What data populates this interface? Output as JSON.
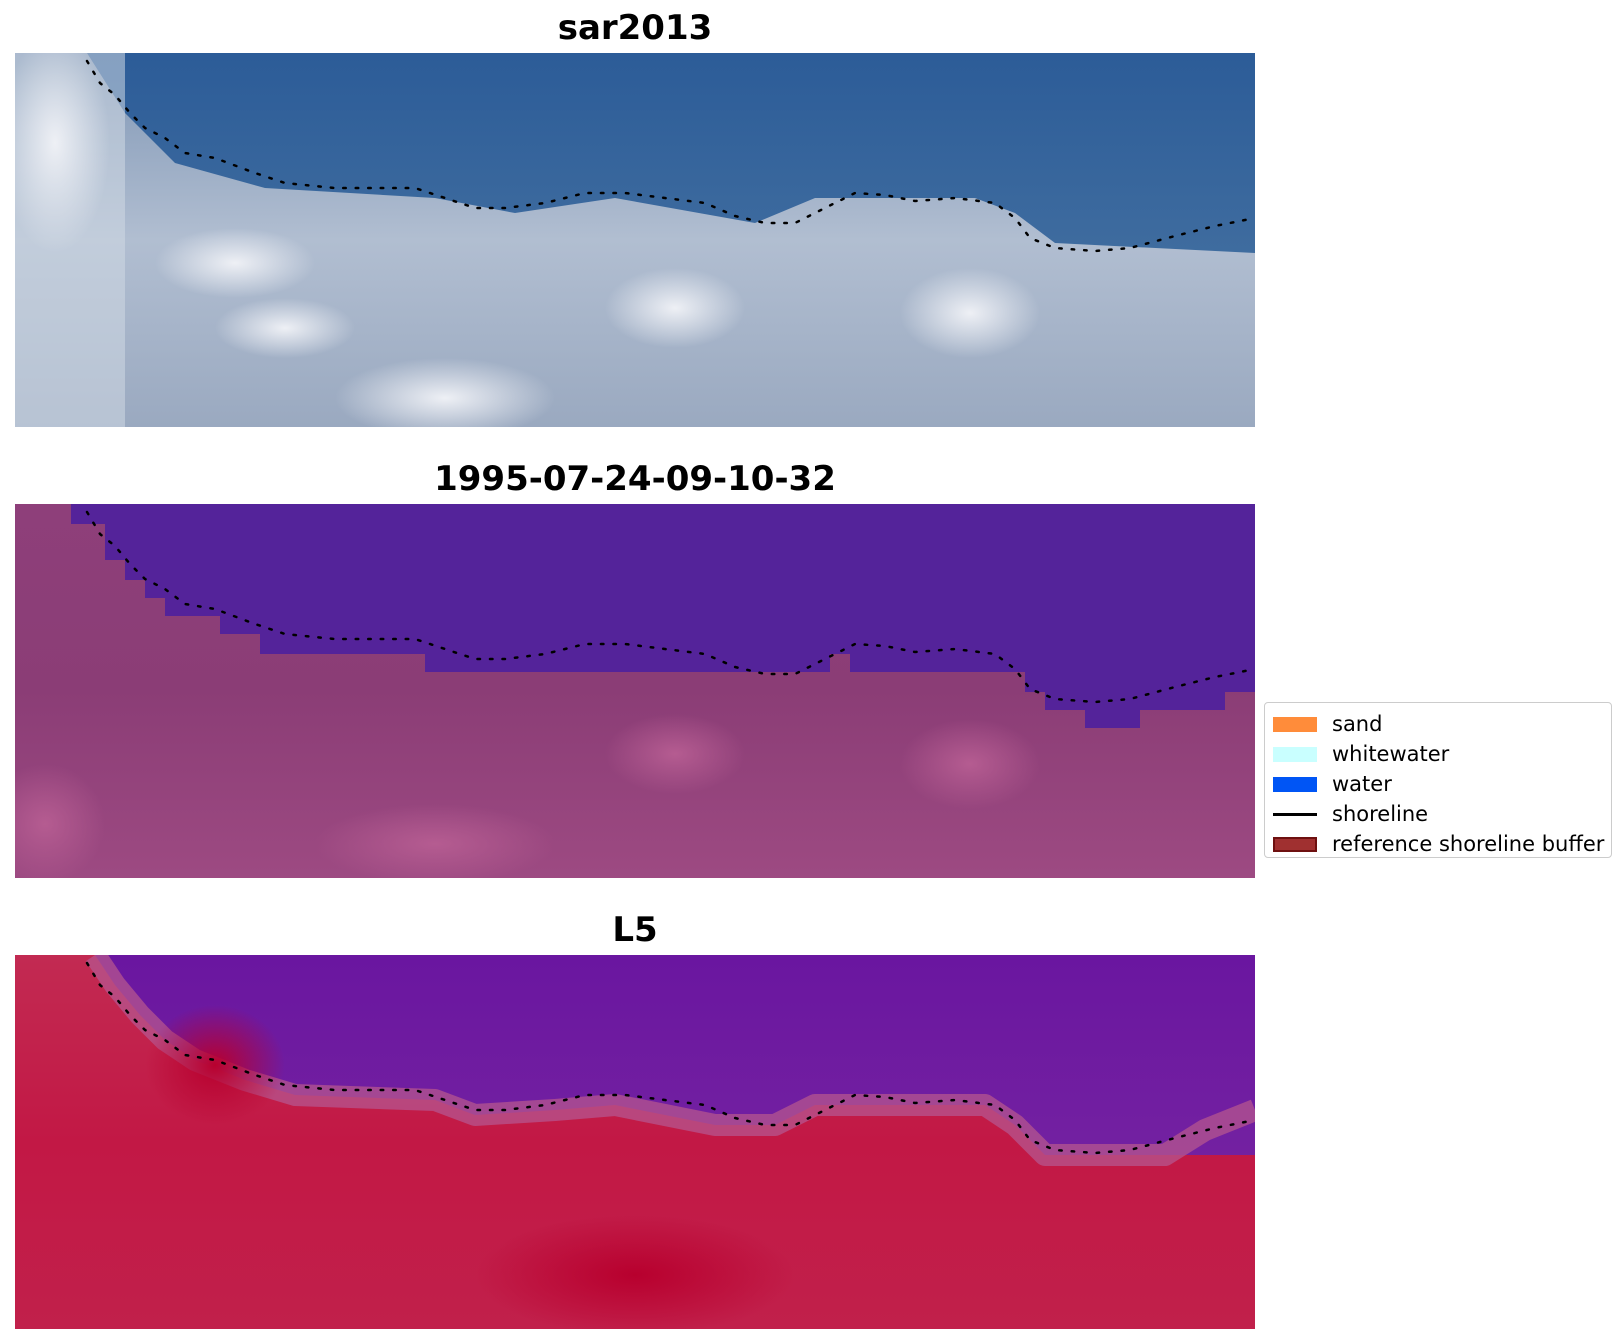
{
  "panels": [
    {
      "title": "sar2013"
    },
    {
      "title": "1995-07-24-09-10-32"
    },
    {
      "title": "L5"
    }
  ],
  "legend": {
    "items": [
      {
        "label": "sand",
        "color": "#ff8c3a",
        "kind": "patch"
      },
      {
        "label": "whitewater",
        "color": "#c9ffff",
        "kind": "patch"
      },
      {
        "label": "water",
        "color": "#0055f5",
        "kind": "patch"
      },
      {
        "label": "shoreline",
        "color": "#000000",
        "kind": "line"
      },
      {
        "label": "reference shoreline buffer",
        "color": "#a03030",
        "kind": "patch",
        "edge": "#6e1010"
      }
    ]
  },
  "colors": {
    "panel1_water": "#2e5e98",
    "panel1_land": "#b7c2d4",
    "panel2_water": "#53239a",
    "panel2_land": "#93467c",
    "panel3_water": "#6e1ba0",
    "panel3_land": "#c0224b",
    "shoreline_dots": "#000000"
  }
}
